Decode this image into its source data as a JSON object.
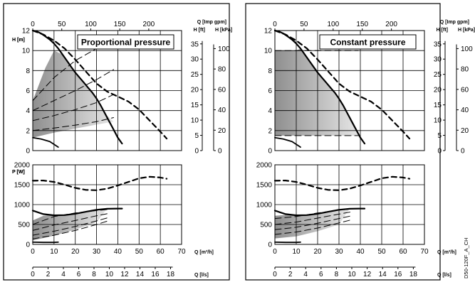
{
  "image_code": "D50-120F_A_CH",
  "chart_data": [
    {
      "type": "line",
      "title": "Proportional pressure",
      "H_chart": {
        "ylabel_left": "H [m]",
        "y_ticks_left": [
          "0",
          "2",
          "4",
          "6",
          "8",
          "10",
          "12"
        ],
        "ylabel_ft": "H [ft]",
        "y_ticks_ft": [
          "0",
          "5",
          "10",
          "15",
          "20",
          "25",
          "30",
          "35"
        ],
        "ylabel_kpa": "H [kPa]",
        "y_ticks_kpa": [
          "0",
          "20",
          "40",
          "60",
          "80",
          "100"
        ],
        "xlabel_top": "Q [Imp gpm]",
        "x_ticks_top": [
          "0",
          "50",
          "100",
          "150",
          "200"
        ],
        "xlim": [
          0,
          70
        ],
        "ylim": [
          0,
          12
        ],
        "series": [
          {
            "style": "solid",
            "x": [
              0,
              2,
              4,
              6,
              8,
              10,
              12,
              14,
              16,
              18,
              20,
              22,
              24,
              26,
              28,
              30,
              32,
              34,
              36,
              38,
              40,
              42
            ],
            "y": [
              12.0,
              11.9,
              11.7,
              11.4,
              11.1,
              10.7,
              10.2,
              9.6,
              9.0,
              8.4,
              7.8,
              7.3,
              6.8,
              6.3,
              5.8,
              5.2,
              4.5,
              3.7,
              2.9,
              2.1,
              1.3,
              0.7
            ]
          },
          {
            "style": "dashed",
            "x": [
              0,
              5,
              10,
              15,
              20,
              25,
              30,
              35,
              40,
              45,
              50,
              55,
              60,
              63
            ],
            "y": [
              12.0,
              11.6,
              11.0,
              10.2,
              9.1,
              7.9,
              6.7,
              5.9,
              5.4,
              4.9,
              4.1,
              3.0,
              1.9,
              1.2
            ]
          },
          {
            "style": "solid",
            "x": [
              0,
              4,
              8,
              12
            ],
            "y": [
              1.3,
              1.15,
              0.9,
              0.35
            ]
          },
          {
            "style": "dashed",
            "x": [
              0,
              10,
              20,
              30,
              38
            ],
            "y": [
              5.0,
              7.3,
              9.0,
              10.2,
              10.9
            ]
          },
          {
            "style": "dashed",
            "x": [
              0,
              10,
              20,
              30,
              38
            ],
            "y": [
              4.0,
              5.0,
              6.0,
              7.1,
              8.1
            ]
          },
          {
            "style": "dashed",
            "x": [
              0,
              10,
              20,
              30,
              38
            ],
            "y": [
              3.0,
              3.5,
              4.1,
              4.8,
              5.6
            ]
          },
          {
            "style": "dashed",
            "x": [
              0,
              10,
              20,
              30,
              38
            ],
            "y": [
              2.0,
              2.25,
              2.55,
              2.9,
              3.3
            ]
          }
        ],
        "shaded_region": {
          "upper_x": [
            0,
            6,
            10,
            14,
            18,
            22,
            26,
            30,
            34,
            38
          ],
          "upper_y": [
            5.0,
            8.3,
            10.0,
            9.6,
            8.4,
            7.3,
            6.3,
            5.2,
            3.7,
            2.9
          ],
          "lower_x": [
            38,
            30,
            20,
            10,
            0
          ],
          "lower_y": [
            2.9,
            2.6,
            2.2,
            1.8,
            1.3
          ]
        }
      },
      "P_chart": {
        "ylabel": "P [W]",
        "y_ticks": [
          "0",
          "500",
          "1000",
          "1500",
          "2000"
        ],
        "ylim": [
          0,
          2000
        ],
        "xlabel": "Q [m³/h]",
        "x_ticks": [
          "0",
          "10",
          "20",
          "30",
          "40",
          "50",
          "60",
          "70"
        ],
        "xlabel_ls": "Q [l/s]",
        "x_ticks_ls": [
          "0",
          "2",
          "4",
          "6",
          "8",
          "10",
          "12",
          "14",
          "16",
          "18"
        ],
        "xlim": [
          0,
          70
        ],
        "series": [
          {
            "style": "solid",
            "x": [
              0,
              5,
              10,
              15,
              20,
              25,
              30,
              35,
              40,
              42
            ],
            "y": [
              850,
              760,
              730,
              735,
              770,
              820,
              870,
              895,
              900,
              900
            ]
          },
          {
            "style": "dashed",
            "x": [
              0,
              5,
              10,
              15,
              20,
              25,
              30,
              35,
              40,
              45,
              50,
              55,
              60,
              63
            ],
            "y": [
              1600,
              1605,
              1570,
              1500,
              1420,
              1370,
              1360,
              1400,
              1480,
              1570,
              1660,
              1700,
              1680,
              1650
            ]
          },
          {
            "style": "solid",
            "x": [
              0,
              5,
              10,
              12
            ],
            "y": [
              55,
              50,
              50,
              55
            ]
          },
          {
            "style": "dashed",
            "x": [
              0,
              10,
              20,
              30,
              36
            ],
            "y": [
              500,
              700,
              790,
              850,
              880
            ]
          },
          {
            "style": "dashed",
            "x": [
              0,
              10,
              20,
              30,
              36
            ],
            "y": [
              350,
              490,
              600,
              720,
              780
            ]
          },
          {
            "style": "dashed",
            "x": [
              0,
              10,
              20,
              30,
              36
            ],
            "y": [
              230,
              330,
              450,
              590,
              680
            ]
          },
          {
            "style": "dashed",
            "x": [
              0,
              10,
              20,
              30,
              36
            ],
            "y": [
              140,
              230,
              350,
              500,
              600
            ]
          }
        ],
        "shaded_region": {
          "upper_x": [
            0,
            5,
            10,
            15,
            20,
            25,
            30,
            35
          ],
          "upper_y": [
            600,
            720,
            750,
            750,
            780,
            830,
            880,
            900
          ],
          "lower_x": [
            35,
            30,
            20,
            10,
            0
          ],
          "lower_y": [
            900,
            560,
            370,
            220,
            100
          ]
        }
      }
    },
    {
      "type": "line",
      "title": "Constant pressure",
      "H_chart": {
        "ylabel_left": "H [m]",
        "y_ticks_left": [
          "0",
          "2",
          "4",
          "6",
          "8",
          "10",
          "12"
        ],
        "ylabel_ft": "H [ft]",
        "y_ticks_ft": [
          "0",
          "5",
          "10",
          "15",
          "20",
          "25",
          "30",
          "35"
        ],
        "ylabel_kpa": "H [kPa]",
        "y_ticks_kpa": [
          "0",
          "20",
          "40",
          "60",
          "80",
          "100"
        ],
        "xlabel_top": "Q [Imp gpm]",
        "x_ticks_top": [
          "0",
          "50",
          "100",
          "150",
          "200"
        ],
        "xlim": [
          0,
          70
        ],
        "ylim": [
          0,
          12
        ],
        "series": [
          {
            "style": "solid",
            "x": [
              0,
              2,
              4,
              6,
              8,
              10,
              12,
              14,
              16,
              18,
              20,
              22,
              24,
              26,
              28,
              30,
              32,
              34,
              36,
              38,
              40,
              42
            ],
            "y": [
              12.0,
              11.9,
              11.7,
              11.4,
              11.1,
              10.7,
              10.2,
              9.6,
              9.0,
              8.4,
              7.8,
              7.3,
              6.8,
              6.3,
              5.8,
              5.2,
              4.5,
              3.7,
              2.9,
              2.1,
              1.3,
              0.7
            ]
          },
          {
            "style": "dashed",
            "x": [
              0,
              5,
              10,
              15,
              20,
              25,
              30,
              35,
              40,
              45,
              50,
              55,
              60,
              63
            ],
            "y": [
              12.0,
              11.6,
              11.0,
              10.2,
              9.1,
              7.9,
              6.7,
              5.9,
              5.4,
              4.9,
              4.1,
              3.0,
              1.9,
              1.2
            ]
          },
          {
            "style": "solid",
            "x": [
              0,
              4,
              8,
              12
            ],
            "y": [
              1.3,
              1.15,
              0.9,
              0.35
            ]
          },
          {
            "style": "dashed",
            "x": [
              0,
              39
            ],
            "y": [
              10.0,
              10.0
            ]
          },
          {
            "style": "dashed",
            "x": [
              0,
              39
            ],
            "y": [
              1.5,
              1.5
            ]
          }
        ],
        "shaded_region": {
          "upper_x": [
            0,
            10,
            12,
            14,
            16,
            18,
            20,
            22,
            24,
            26,
            28,
            30,
            32,
            34,
            36,
            39
          ],
          "upper_y": [
            10.0,
            10.0,
            10.2,
            9.6,
            9.0,
            8.4,
            7.8,
            7.3,
            6.8,
            6.3,
            5.8,
            5.2,
            4.5,
            3.7,
            2.9,
            1.5
          ],
          "lower_x": [
            39,
            0
          ],
          "lower_y": [
            1.5,
            1.5
          ]
        }
      },
      "P_chart": {
        "ylabel": "P [W]",
        "y_ticks": [
          "0",
          "500",
          "1000",
          "1500",
          "2000"
        ],
        "ylim": [
          0,
          2000
        ],
        "xlabel": "Q [m³/h]",
        "x_ticks": [
          "0",
          "10",
          "20",
          "30",
          "40",
          "50",
          "60",
          "70"
        ],
        "xlabel_ls": "Q [l/s]",
        "x_ticks_ls": [
          "0",
          "2",
          "4",
          "6",
          "8",
          "10",
          "12",
          "14",
          "16",
          "18"
        ],
        "xlim": [
          0,
          70
        ],
        "series": [
          {
            "style": "solid",
            "x": [
              0,
              5,
              10,
              15,
              20,
              25,
              30,
              35,
              40,
              42
            ],
            "y": [
              850,
              760,
              730,
              735,
              770,
              820,
              870,
              895,
              900,
              900
            ]
          },
          {
            "style": "dashed",
            "x": [
              0,
              5,
              10,
              15,
              20,
              25,
              30,
              35,
              40,
              45,
              50,
              55,
              60,
              63
            ],
            "y": [
              1600,
              1605,
              1570,
              1500,
              1420,
              1370,
              1360,
              1400,
              1480,
              1570,
              1660,
              1700,
              1680,
              1650
            ]
          },
          {
            "style": "solid",
            "x": [
              0,
              5,
              10,
              12
            ],
            "y": [
              55,
              50,
              50,
              55
            ]
          },
          {
            "style": "dashed",
            "x": [
              0,
              10,
              20,
              30,
              36
            ],
            "y": [
              650,
              700,
              790,
              860,
              890
            ]
          },
          {
            "style": "dashed",
            "x": [
              0,
              10,
              20,
              30,
              36
            ],
            "y": [
              500,
              560,
              660,
              760,
              820
            ]
          },
          {
            "style": "dashed",
            "x": [
              0,
              10,
              20,
              30,
              36
            ],
            "y": [
              370,
              430,
              530,
              650,
              720
            ]
          },
          {
            "style": "dashed",
            "x": [
              0,
              10,
              20,
              30,
              36
            ],
            "y": [
              250,
              310,
              410,
              540,
              620
            ]
          }
        ],
        "shaded_region": {
          "upper_x": [
            0,
            5,
            10,
            15,
            20,
            25,
            30,
            35
          ],
          "upper_y": [
            720,
            740,
            750,
            750,
            780,
            830,
            880,
            900
          ],
          "lower_x": [
            35,
            30,
            20,
            10,
            0
          ],
          "lower_y": [
            900,
            500,
            330,
            200,
            150
          ]
        }
      }
    }
  ]
}
